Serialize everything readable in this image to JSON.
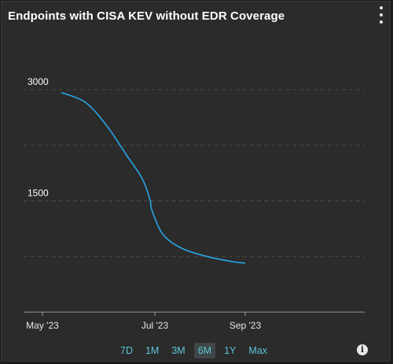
{
  "panel": {
    "title": "Endpoints with CISA KEV without EDR Coverage"
  },
  "icons": {
    "menu": "vertical-ellipsis-icon",
    "info": "info-icon",
    "info_glyph": "i"
  },
  "colors": {
    "background": "#2b2b2b",
    "line": "#2aa6e6",
    "grid": "#4a4a4a",
    "accent": "#5dc4d8"
  },
  "range_selector": {
    "options": [
      "7D",
      "1M",
      "3M",
      "6M",
      "1Y",
      "Max"
    ],
    "selected": "6M"
  },
  "chart_data": {
    "type": "line",
    "title": "Endpoints with CISA KEV without EDR Coverage",
    "xlabel": "",
    "ylabel": "",
    "x_ticks": [
      "May '23",
      "Jul '23",
      "Sep '23"
    ],
    "y_ticks": [
      3000,
      1500
    ],
    "ylim": [
      0,
      3000
    ],
    "xlim": [
      "2023-05-01",
      "2023-09-01"
    ],
    "grid": true,
    "legend": "none",
    "series": [
      {
        "x": [
          "2023-05-08",
          "2023-05-23",
          "2023-06-05",
          "2023-06-18",
          "2023-06-28",
          "2023-07-03",
          "2023-07-04",
          "2023-07-11",
          "2023-07-23",
          "2023-08-08",
          "2023-08-24",
          "2023-09-01"
        ],
        "values": [
          2960,
          2830,
          2530,
          2120,
          1800,
          1510,
          1380,
          1050,
          860,
          750,
          680,
          660
        ]
      }
    ]
  }
}
